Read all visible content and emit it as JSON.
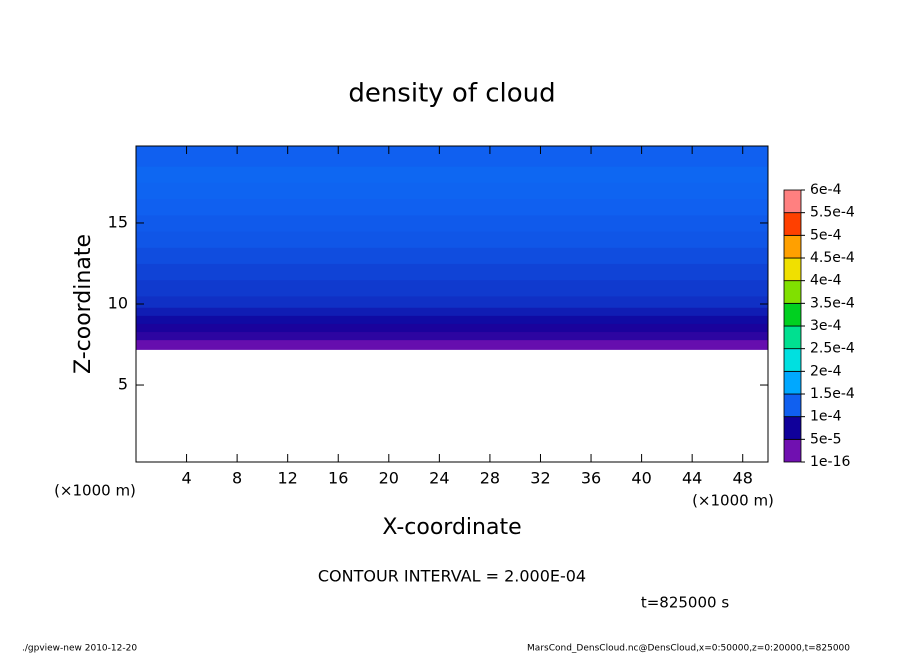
{
  "chart_data": {
    "type": "contour",
    "title": "density of cloud",
    "x_label": "X-coordinate",
    "y_label": "Z-coordinate",
    "x_unit_label": "(×1000 m)",
    "y_unit_label": "(×1000 m)",
    "contour_note": "CONTOUR INTERVAL = 2.000E-04",
    "time_label": "t=825000 s",
    "footer_left": "./gpview-new   2010-12-20",
    "footer_right": "MarsCond_DensCloud.nc@DensCloud,x=0:50000,z=0:20000,t=825000",
    "xlim": [
      0,
      50
    ],
    "xticks": [
      4,
      8,
      12,
      16,
      20,
      24,
      28,
      32,
      36,
      40,
      44,
      48
    ],
    "ylim": [
      0.25,
      19.75
    ],
    "yticks": [
      5,
      10,
      15
    ],
    "z_edges": [
      7.2,
      7.8,
      8.3,
      8.8,
      9.3,
      9.8,
      10.5,
      11.5,
      12.5,
      13.5,
      14.5,
      15.5,
      16.5,
      17.5,
      18.5,
      19.75
    ],
    "values": [
      3e-05,
      6e-05,
      7e-05,
      8e-05,
      9e-05,
      0.0001,
      0.000105,
      0.00011,
      0.000115,
      0.00012,
      0.000122,
      0.000125,
      0.000128,
      0.00013,
      0.000125
    ],
    "levels": [
      {
        "value": 1e-16,
        "label": "1e-16"
      },
      {
        "value": 5e-05,
        "label": "5e-5"
      },
      {
        "value": 0.0001,
        "label": "1e-4"
      },
      {
        "value": 0.00015,
        "label": "1.5e-4"
      },
      {
        "value": 0.0002,
        "label": "2e-4"
      },
      {
        "value": 0.00025,
        "label": "2.5e-4"
      },
      {
        "value": 0.0003,
        "label": "3e-4"
      },
      {
        "value": 0.00035,
        "label": "3.5e-4"
      },
      {
        "value": 0.0004,
        "label": "4e-4"
      },
      {
        "value": 0.00045,
        "label": "4.5e-4"
      },
      {
        "value": 0.0005,
        "label": "5e-4"
      },
      {
        "value": 0.00055,
        "label": "5.5e-4"
      },
      {
        "value": 0.0006,
        "label": "6e-4"
      }
    ],
    "colors": [
      "#7010b0",
      "#10009a",
      "#1060f0",
      "#00a8ff",
      "#00e0e0",
      "#00e090",
      "#00d020",
      "#80e000",
      "#f0e000",
      "#ffa000",
      "#ff4000",
      "#ff8080"
    ]
  }
}
